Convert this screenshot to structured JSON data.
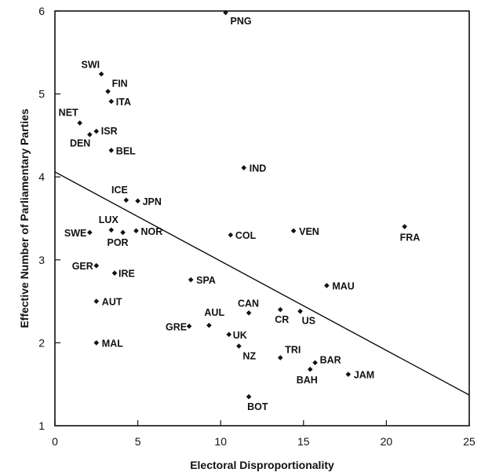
{
  "chart_data": {
    "type": "scatter",
    "title": "",
    "xlabel": "Electoral Disproportionality",
    "ylabel": "Effective Number of Parliamentary Parties",
    "xlim": [
      0,
      25
    ],
    "ylim": [
      1,
      6
    ],
    "xticks": [
      "0",
      "5",
      "10",
      "15",
      "20",
      "25"
    ],
    "yticks": [
      "1",
      "2",
      "3",
      "4",
      "5",
      "6"
    ],
    "grid": false,
    "points": [
      {
        "label": "PNG",
        "x": 10.3,
        "y": 5.98
      },
      {
        "label": "SWI",
        "x": 2.8,
        "y": 5.24
      },
      {
        "label": "FIN",
        "x": 3.2,
        "y": 5.03
      },
      {
        "label": "ITA",
        "x": 3.4,
        "y": 4.91
      },
      {
        "label": "NET",
        "x": 1.5,
        "y": 4.65
      },
      {
        "label": "ISR",
        "x": 2.5,
        "y": 4.55
      },
      {
        "label": "DEN",
        "x": 2.1,
        "y": 4.51
      },
      {
        "label": "BEL",
        "x": 3.4,
        "y": 4.32
      },
      {
        "label": "IND",
        "x": 11.4,
        "y": 4.11
      },
      {
        "label": "ICE",
        "x": 4.3,
        "y": 3.72
      },
      {
        "label": "JPN",
        "x": 5.0,
        "y": 3.71
      },
      {
        "label": "LUX",
        "x": 3.4,
        "y": 3.36
      },
      {
        "label": "SWE",
        "x": 2.1,
        "y": 3.33
      },
      {
        "label": "POR",
        "x": 4.1,
        "y": 3.33
      },
      {
        "label": "NOR",
        "x": 4.9,
        "y": 3.35
      },
      {
        "label": "COL",
        "x": 10.6,
        "y": 3.3
      },
      {
        "label": "VEN",
        "x": 14.4,
        "y": 3.35
      },
      {
        "label": "FRA",
        "x": 21.1,
        "y": 3.4
      },
      {
        "label": "GER",
        "x": 2.5,
        "y": 2.93
      },
      {
        "label": "IRE",
        "x": 3.6,
        "y": 2.84
      },
      {
        "label": "SPA",
        "x": 8.2,
        "y": 2.76
      },
      {
        "label": "MAU",
        "x": 16.4,
        "y": 2.69
      },
      {
        "label": "AUT",
        "x": 2.5,
        "y": 2.5
      },
      {
        "label": "CAN",
        "x": 11.7,
        "y": 2.36
      },
      {
        "label": "CR",
        "x": 13.6,
        "y": 2.4
      },
      {
        "label": "US",
        "x": 14.8,
        "y": 2.38
      },
      {
        "label": "AUL",
        "x": 9.3,
        "y": 2.21
      },
      {
        "label": "GRE",
        "x": 8.1,
        "y": 2.2
      },
      {
        "label": "UK",
        "x": 10.5,
        "y": 2.1
      },
      {
        "label": "MAL",
        "x": 2.5,
        "y": 2.0
      },
      {
        "label": "NZ",
        "x": 11.1,
        "y": 1.96
      },
      {
        "label": "TRI",
        "x": 13.6,
        "y": 1.82
      },
      {
        "label": "BAR",
        "x": 15.7,
        "y": 1.76
      },
      {
        "label": "BAH",
        "x": 15.4,
        "y": 1.68
      },
      {
        "label": "JAM",
        "x": 17.7,
        "y": 1.62
      },
      {
        "label": "BOT",
        "x": 11.7,
        "y": 1.35
      }
    ],
    "regression_line": {
      "x": [
        0,
        25
      ],
      "y": [
        4.06,
        1.37
      ]
    }
  }
}
